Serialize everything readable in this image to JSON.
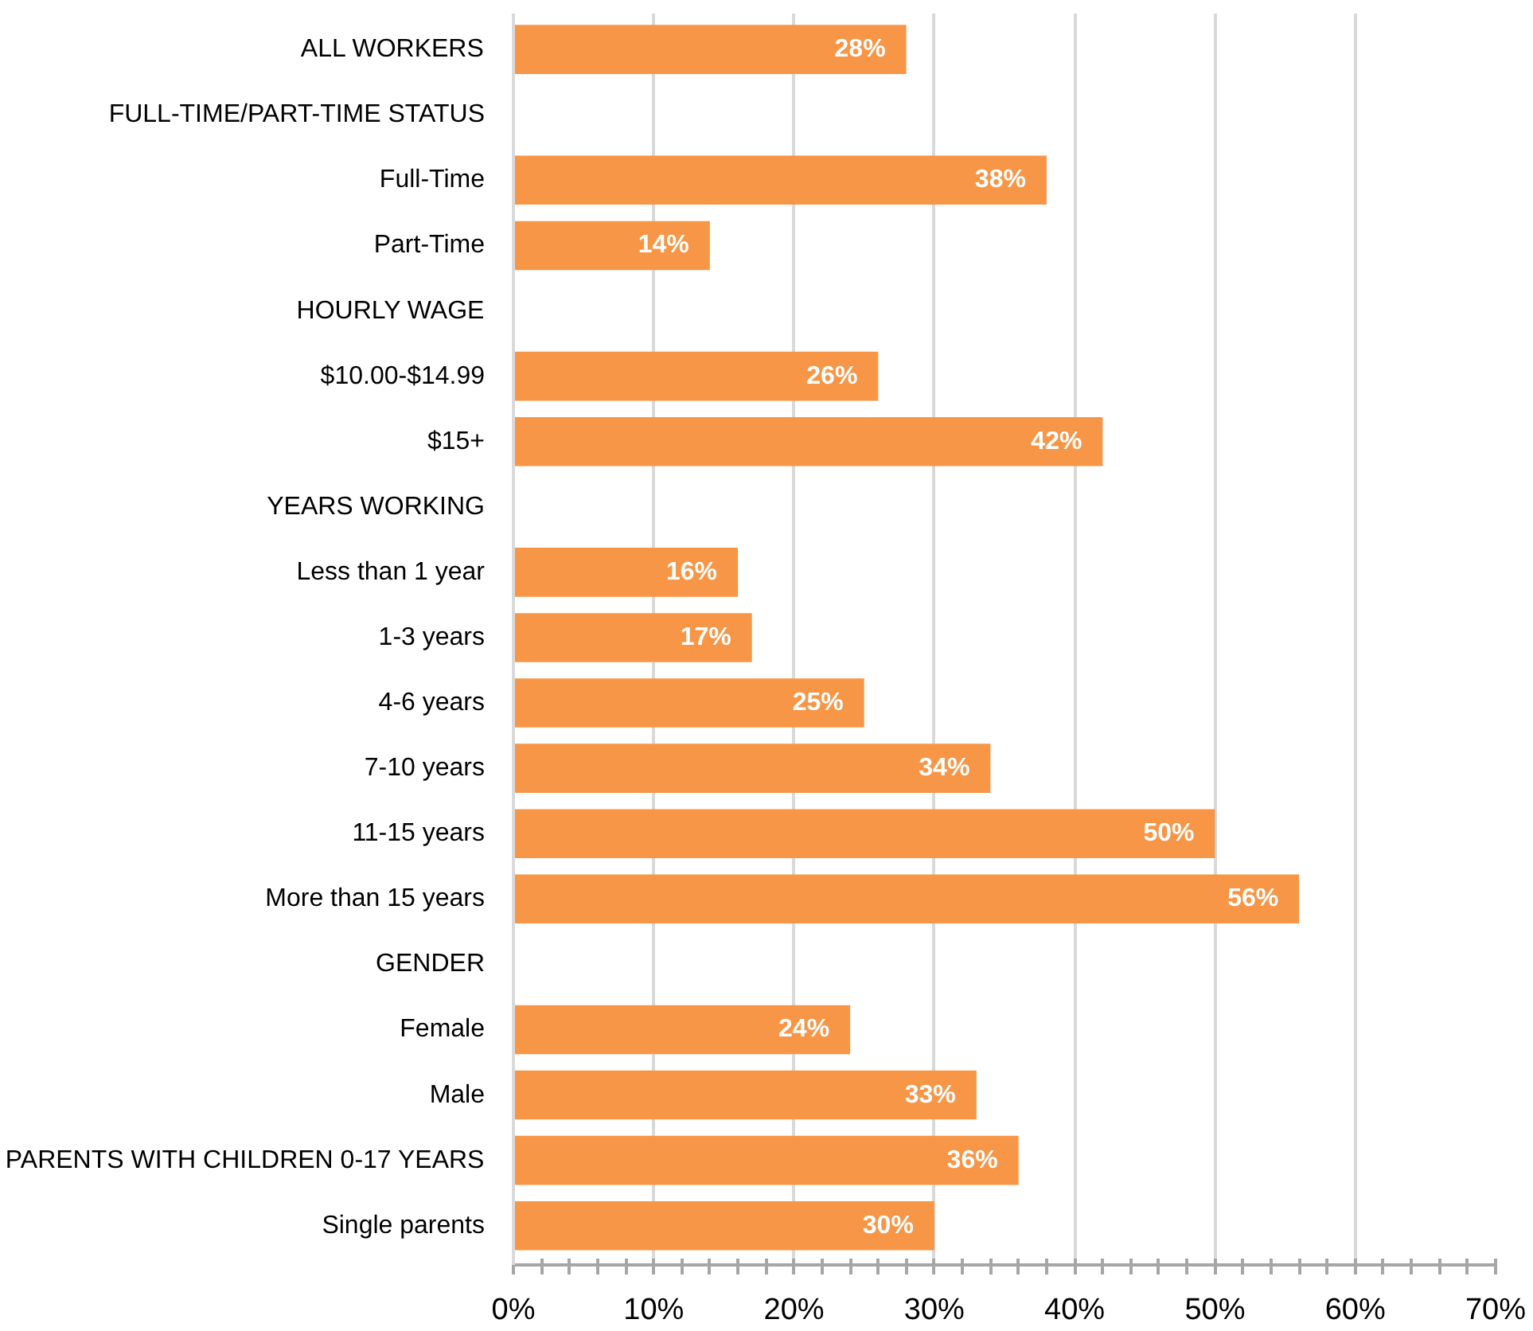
{
  "chart_data": {
    "type": "bar",
    "orientation": "horizontal",
    "categories": [
      "ALL WORKERS",
      "FULL-TIME/PART-TIME STATUS",
      "Full-Time",
      "Part-Time",
      "HOURLY WAGE",
      "$10.00-$14.99",
      "$15+",
      "YEARS WORKING",
      "Less than 1 year",
      "1-3 years",
      "4-6 years",
      "7-10 years",
      "11-15 years",
      "More than 15 years",
      "GENDER",
      "Female",
      "Male",
      "PARENTS WITH CHILDREN 0-17 YEARS",
      "Single parents"
    ],
    "values": [
      28,
      null,
      38,
      14,
      null,
      26,
      42,
      null,
      16,
      17,
      25,
      34,
      50,
      56,
      null,
      24,
      33,
      36,
      30
    ],
    "value_labels": [
      "28%",
      null,
      "38%",
      "14%",
      null,
      "26%",
      "42%",
      null,
      "16%",
      "17%",
      "25%",
      "34%",
      "50%",
      "56%",
      null,
      "24%",
      "33%",
      "36%",
      "30%"
    ],
    "color": "#f79646",
    "xlim": [
      0,
      70
    ],
    "xticks": [
      {
        "value": 0,
        "label": "0%"
      },
      {
        "value": 2,
        "label": null
      },
      {
        "value": 4,
        "label": null
      },
      {
        "value": 6,
        "label": null
      },
      {
        "value": 8,
        "label": null
      },
      {
        "value": 10,
        "label": "10%"
      },
      {
        "value": 12,
        "label": null
      },
      {
        "value": 14,
        "label": null
      },
      {
        "value": 16,
        "label": null
      },
      {
        "value": 18,
        "label": null
      },
      {
        "value": 20,
        "label": "20%"
      },
      {
        "value": 22,
        "label": null
      },
      {
        "value": 24,
        "label": null
      },
      {
        "value": 26,
        "label": null
      },
      {
        "value": 28,
        "label": null
      },
      {
        "value": 30,
        "label": "30%"
      },
      {
        "value": 32,
        "label": null
      },
      {
        "value": 34,
        "label": null
      },
      {
        "value": 36,
        "label": null
      },
      {
        "value": 38,
        "label": null
      },
      {
        "value": 40,
        "label": "40%"
      },
      {
        "value": 42,
        "label": null
      },
      {
        "value": 44,
        "label": null
      },
      {
        "value": 46,
        "label": null
      },
      {
        "value": 48,
        "label": null
      },
      {
        "value": 50,
        "label": "50%"
      },
      {
        "value": 52,
        "label": null
      },
      {
        "value": 54,
        "label": null
      },
      {
        "value": 56,
        "label": null
      },
      {
        "value": 58,
        "label": null
      },
      {
        "value": 60,
        "label": "60%"
      },
      {
        "value": 62,
        "label": null
      },
      {
        "value": 64,
        "label": null
      },
      {
        "value": 66,
        "label": null
      },
      {
        "value": 68,
        "label": null
      },
      {
        "value": 70,
        "label": "70%"
      }
    ],
    "grid": "x"
  }
}
